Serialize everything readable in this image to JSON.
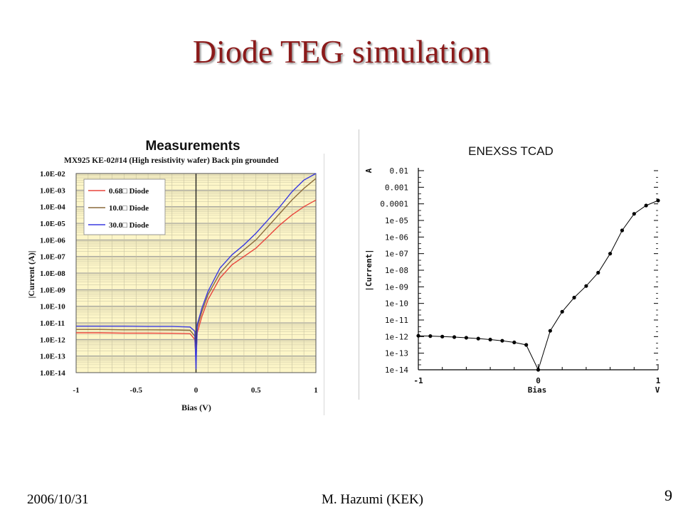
{
  "slide": {
    "title": "Diode TEG simulation",
    "footer_date": "2006/10/31",
    "footer_author": "M. Hazumi (KEK)",
    "page_number": "9"
  },
  "chart_data": [
    {
      "type": "line",
      "heading": "Measurements",
      "title": "MX925 KE-02#14 (High resistivity wafer) Back pin grounded",
      "xlabel": "Bias (V)",
      "ylabel": "|Current (A)|",
      "xlim": [
        -1,
        1
      ],
      "ylim_exponent": [
        -14,
        -2
      ],
      "y_scale": "log",
      "x_tick_labels": [
        "-1",
        "-0.5",
        "0",
        "0.5",
        "1"
      ],
      "y_tick_labels": [
        "1.0E-02",
        "1.0E-03",
        "1.0E-04",
        "1.0E-05",
        "1.0E-06",
        "1.0E-07",
        "1.0E-08",
        "1.0E-09",
        "1.0E-10",
        "1.0E-11",
        "1.0E-12",
        "1.0E-13",
        "1.0E-14"
      ],
      "grid": true,
      "legend_position": "top-left",
      "background_color": "#fdf6c8",
      "series": [
        {
          "name": "0.68□ Diode",
          "color": "#e8453c",
          "x": [
            -1,
            -0.8,
            -0.6,
            -0.4,
            -0.2,
            -0.05,
            -0.01,
            0,
            0.01,
            0.05,
            0.1,
            0.2,
            0.3,
            0.4,
            0.5,
            0.6,
            0.7,
            0.8,
            0.9,
            1
          ],
          "y": [
            -11.6,
            -11.6,
            -11.62,
            -11.62,
            -11.63,
            -11.65,
            -12.0,
            -13.0,
            -11.6,
            -10.6,
            -9.6,
            -8.3,
            -7.5,
            -7.0,
            -6.5,
            -5.8,
            -5.1,
            -4.5,
            -4.0,
            -3.6
          ]
        },
        {
          "name": "10.0□ Diode",
          "color": "#8a6a3a",
          "x": [
            -1,
            -0.8,
            -0.6,
            -0.4,
            -0.2,
            -0.05,
            -0.01,
            0,
            0.01,
            0.05,
            0.1,
            0.2,
            0.3,
            0.4,
            0.5,
            0.6,
            0.7,
            0.8,
            0.9,
            1
          ],
          "y": [
            -11.4,
            -11.4,
            -11.42,
            -11.42,
            -11.43,
            -11.45,
            -11.8,
            -13.3,
            -11.3,
            -10.3,
            -9.3,
            -8.0,
            -7.2,
            -6.6,
            -6.0,
            -5.2,
            -4.4,
            -3.6,
            -2.9,
            -2.3
          ]
        },
        {
          "name": "30.0□ Diode",
          "color": "#3a3ae0",
          "x": [
            -1,
            -0.8,
            -0.6,
            -0.4,
            -0.2,
            -0.05,
            -0.01,
            0,
            0.01,
            0.05,
            0.1,
            0.2,
            0.3,
            0.4,
            0.5,
            0.6,
            0.7,
            0.8,
            0.9,
            1
          ],
          "y": [
            -11.2,
            -11.2,
            -11.2,
            -11.22,
            -11.22,
            -11.25,
            -11.5,
            -13.8,
            -11.1,
            -10.1,
            -9.1,
            -7.7,
            -6.9,
            -6.3,
            -5.6,
            -4.8,
            -4.0,
            -3.1,
            -2.4,
            -2.0
          ]
        }
      ]
    },
    {
      "type": "line",
      "title": "ENEXSS TCAD",
      "xlabel": "Bias",
      "x_unit": "V",
      "ylabel": "|Current|",
      "y_unit": "A",
      "xlim": [
        -1,
        1
      ],
      "ylim_exponent": [
        -14,
        -2
      ],
      "y_scale": "log",
      "x_tick_labels": [
        "-1",
        "0",
        "1"
      ],
      "y_tick_labels": [
        "0.01",
        "0.001",
        "0.0001",
        "1e-05",
        "1e-06",
        "1e-07",
        "1e-08",
        "1e-09",
        "1e-10",
        "1e-11",
        "1e-12",
        "1e-13",
        "1e-14"
      ],
      "grid": false,
      "series": [
        {
          "color": "#000000",
          "markers": true,
          "x": [
            -1,
            -0.9,
            -0.8,
            -0.7,
            -0.6,
            -0.5,
            -0.4,
            -0.3,
            -0.2,
            -0.1,
            0,
            0.1,
            0.2,
            0.3,
            0.4,
            0.5,
            0.6,
            0.7,
            0.8,
            0.9,
            1
          ],
          "y": [
            -11.95,
            -11.97,
            -12.0,
            -12.03,
            -12.07,
            -12.12,
            -12.18,
            -12.25,
            -12.35,
            -12.5,
            -14.0,
            -11.65,
            -10.5,
            -9.65,
            -8.95,
            -8.15,
            -7.0,
            -5.6,
            -4.6,
            -4.1,
            -3.8
          ]
        }
      ]
    }
  ]
}
